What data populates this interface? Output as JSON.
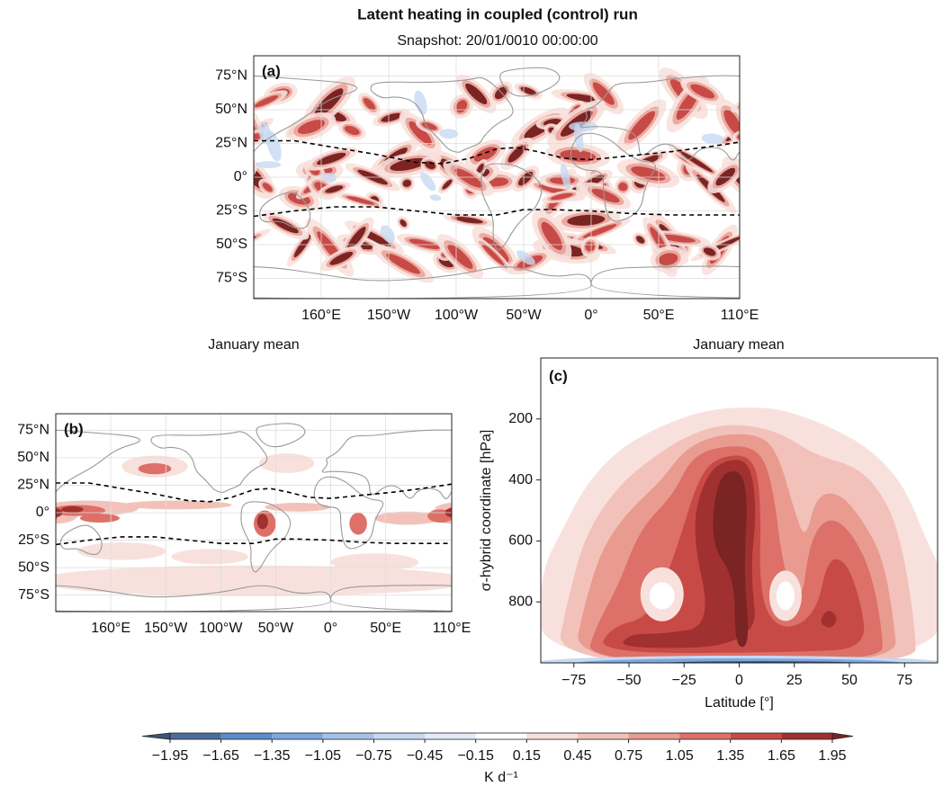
{
  "title": "Latent heating in coupled (control) run",
  "chart_data": [
    {
      "type": "map",
      "panel_label": "(a)",
      "title": "Snapshot: 20/01/0010 00:00:00",
      "xlim": [
        110,
        470
      ],
      "ylim": [
        -90,
        90
      ],
      "grid": true,
      "xticks": [
        {
          "value": 160,
          "label": "160°E"
        },
        {
          "value": 210,
          "label": "150°W"
        },
        {
          "value": 260,
          "label": "100°W"
        },
        {
          "value": 310,
          "label": "50°W"
        },
        {
          "value": 360,
          "label": "0°"
        },
        {
          "value": 410,
          "label": "50°E"
        },
        {
          "value": 470,
          "label": "110°E"
        }
      ],
      "yticks": [
        {
          "value": 75,
          "label": "75°N"
        },
        {
          "value": 50,
          "label": "50°N"
        },
        {
          "value": 25,
          "label": "25°N"
        },
        {
          "value": 0,
          "label": "0°"
        },
        {
          "value": -25,
          "label": "25°S"
        },
        {
          "value": -50,
          "label": "50°S"
        },
        {
          "value": -75,
          "label": "75°S"
        }
      ]
    },
    {
      "type": "map",
      "panel_label": "(b)",
      "title": "January mean",
      "xlim": [
        110,
        470
      ],
      "ylim": [
        -90,
        90
      ],
      "grid": true,
      "xticks": [
        {
          "value": 160,
          "label": "160°E"
        },
        {
          "value": 210,
          "label": "150°W"
        },
        {
          "value": 260,
          "label": "100°W"
        },
        {
          "value": 310,
          "label": "50°W"
        },
        {
          "value": 360,
          "label": "0°"
        },
        {
          "value": 410,
          "label": "50°E"
        },
        {
          "value": 470,
          "label": "110°E"
        }
      ],
      "yticks": [
        {
          "value": 75,
          "label": "75°N"
        },
        {
          "value": 50,
          "label": "50°N"
        },
        {
          "value": 25,
          "label": "25°N"
        },
        {
          "value": 0,
          "label": "0°"
        },
        {
          "value": -25,
          "label": "25°S"
        },
        {
          "value": -50,
          "label": "50°S"
        },
        {
          "value": -75,
          "label": "75°S"
        }
      ]
    },
    {
      "type": "contour",
      "panel_label": "(c)",
      "title": "January mean",
      "xlabel": "Latitude [°]",
      "ylabel": "σ-hybrid coordinate [hPa]",
      "xlim": [
        -90,
        90
      ],
      "ylim": [
        1000,
        0
      ],
      "xticks": [
        {
          "value": -75,
          "label": "−75"
        },
        {
          "value": -50,
          "label": "−50"
        },
        {
          "value": -25,
          "label": "−25"
        },
        0,
        25,
        50,
        75
      ],
      "yticks": [
        200,
        400,
        600,
        800
      ]
    },
    {
      "type": "colorbar",
      "label": "K d⁻¹",
      "levels": [
        {
          "value": -1.95,
          "label": "−1.95"
        },
        {
          "value": -1.65,
          "label": "−1.65"
        },
        {
          "value": -1.35,
          "label": "−1.35"
        },
        {
          "value": -1.05,
          "label": "−1.05"
        },
        {
          "value": -0.75,
          "label": "−0.75"
        },
        {
          "value": -0.45,
          "label": "−0.45"
        },
        {
          "value": -0.15,
          "label": "−0.15"
        },
        0.15,
        0.45,
        0.75,
        1.05,
        1.35,
        1.65,
        1.95
      ],
      "colors": [
        "#4a6d9a",
        "#5a8ccc",
        "#7ca7e0",
        "#a5c3ea",
        "#c7d9f2",
        "#e3ebf8",
        "#ffffff",
        "#f8e1dd",
        "#f2c2ba",
        "#e99b90",
        "#dd7068",
        "#c84a46",
        "#a13030"
      ],
      "extend_colors": [
        "#3b5675",
        "#7a2424"
      ]
    }
  ]
}
